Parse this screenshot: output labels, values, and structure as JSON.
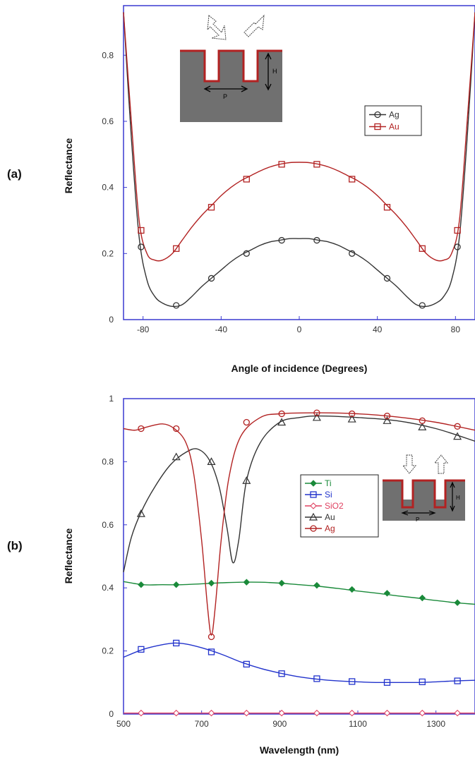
{
  "chart_data": [
    {
      "panel": "(a)",
      "type": "line",
      "xlabel": "Angle of incidence (Degrees)",
      "ylabel": "Reflectance",
      "xlim": [
        -90,
        90
      ],
      "ylim": [
        0,
        0.95
      ],
      "xticks": [
        -80,
        -40,
        0,
        40,
        80
      ],
      "yticks": [
        0,
        0.2,
        0.4,
        0.6,
        0.8
      ],
      "legend_position": "middle-right",
      "grid": false,
      "series": [
        {
          "name": "Ag",
          "color": "#333333",
          "marker": "circle",
          "curve": [
            [
              -90,
              0.93
            ],
            [
              -86,
              0.55
            ],
            [
              -82,
              0.25
            ],
            [
              -78,
              0.12
            ],
            [
              -74,
              0.07
            ],
            [
              -70,
              0.05
            ],
            [
              -65,
              0.04
            ],
            [
              -60,
              0.045
            ],
            [
              -55,
              0.07
            ],
            [
              -50,
              0.1
            ],
            [
              -45,
              0.125
            ],
            [
              -40,
              0.15
            ],
            [
              -35,
              0.175
            ],
            [
              -30,
              0.195
            ],
            [
              -25,
              0.21
            ],
            [
              -20,
              0.225
            ],
            [
              -15,
              0.235
            ],
            [
              -10,
              0.24
            ],
            [
              -5,
              0.245
            ],
            [
              0,
              0.245
            ],
            [
              5,
              0.245
            ],
            [
              10,
              0.24
            ],
            [
              15,
              0.235
            ],
            [
              20,
              0.225
            ],
            [
              25,
              0.21
            ],
            [
              30,
              0.195
            ],
            [
              35,
              0.175
            ],
            [
              40,
              0.15
            ],
            [
              45,
              0.125
            ],
            [
              50,
              0.1
            ],
            [
              55,
              0.07
            ],
            [
              60,
              0.045
            ],
            [
              65,
              0.04
            ],
            [
              70,
              0.05
            ],
            [
              74,
              0.07
            ],
            [
              78,
              0.12
            ],
            [
              82,
              0.25
            ],
            [
              86,
              0.55
            ],
            [
              90,
              0.93
            ]
          ],
          "markers": [
            [
              -81,
              0.22
            ],
            [
              -63,
              0.043
            ],
            [
              -45,
              0.125
            ],
            [
              -27,
              0.2
            ],
            [
              -9,
              0.24
            ],
            [
              9,
              0.24
            ],
            [
              27,
              0.2
            ],
            [
              45,
              0.125
            ],
            [
              63,
              0.043
            ],
            [
              81,
              0.22
            ]
          ]
        },
        {
          "name": "Au",
          "color": "#b22222",
          "marker": "square",
          "curve": [
            [
              -90,
              0.93
            ],
            [
              -86,
              0.6
            ],
            [
              -82,
              0.3
            ],
            [
              -78,
              0.2
            ],
            [
              -74,
              0.18
            ],
            [
              -70,
              0.18
            ],
            [
              -65,
              0.2
            ],
            [
              -60,
              0.24
            ],
            [
              -55,
              0.28
            ],
            [
              -50,
              0.315
            ],
            [
              -45,
              0.345
            ],
            [
              -40,
              0.375
            ],
            [
              -35,
              0.4
            ],
            [
              -30,
              0.42
            ],
            [
              -25,
              0.435
            ],
            [
              -20,
              0.45
            ],
            [
              -15,
              0.462
            ],
            [
              -10,
              0.47
            ],
            [
              -5,
              0.475
            ],
            [
              0,
              0.476
            ],
            [
              5,
              0.475
            ],
            [
              10,
              0.47
            ],
            [
              15,
              0.462
            ],
            [
              20,
              0.45
            ],
            [
              25,
              0.435
            ],
            [
              30,
              0.42
            ],
            [
              35,
              0.4
            ],
            [
              40,
              0.375
            ],
            [
              45,
              0.345
            ],
            [
              50,
              0.315
            ],
            [
              55,
              0.28
            ],
            [
              60,
              0.24
            ],
            [
              65,
              0.2
            ],
            [
              70,
              0.18
            ],
            [
              74,
              0.18
            ],
            [
              78,
              0.2
            ],
            [
              82,
              0.3
            ],
            [
              86,
              0.6
            ],
            [
              90,
              0.93
            ]
          ],
          "markers": [
            [
              -81,
              0.27
            ],
            [
              -63,
              0.215
            ],
            [
              -45,
              0.34
            ],
            [
              -27,
              0.425
            ],
            [
              -9,
              0.47
            ],
            [
              9,
              0.47
            ],
            [
              27,
              0.425
            ],
            [
              45,
              0.34
            ],
            [
              63,
              0.215
            ],
            [
              81,
              0.27
            ]
          ]
        }
      ],
      "inset": {
        "labels": [
          "H",
          "P"
        ],
        "position": "top-left"
      }
    },
    {
      "panel": "(b)",
      "type": "line",
      "xlabel": "Wavelength (nm)",
      "ylabel": "Reflectance",
      "xlim": [
        500,
        1400
      ],
      "ylim": [
        0,
        1
      ],
      "xticks": [
        500,
        700,
        900,
        1100,
        1300
      ],
      "yticks": [
        0,
        0.2,
        0.4,
        0.6,
        0.8,
        1
      ],
      "legend_position": "center-right",
      "grid": false,
      "series": [
        {
          "name": "Ti",
          "color": "#1a8a3a",
          "marker": "diamond-filled",
          "curve": [
            [
              500,
              0.42
            ],
            [
              550,
              0.41
            ],
            [
              600,
              0.41
            ],
            [
              650,
              0.41
            ],
            [
              700,
              0.413
            ],
            [
              750,
              0.416
            ],
            [
              800,
              0.418
            ],
            [
              850,
              0.418
            ],
            [
              900,
              0.415
            ],
            [
              950,
              0.41
            ],
            [
              1000,
              0.405
            ],
            [
              1050,
              0.398
            ],
            [
              1100,
              0.39
            ],
            [
              1150,
              0.383
            ],
            [
              1200,
              0.375
            ],
            [
              1250,
              0.368
            ],
            [
              1300,
              0.36
            ],
            [
              1350,
              0.353
            ],
            [
              1400,
              0.348
            ]
          ],
          "markers": [
            [
              545,
              0.41
            ],
            [
              635,
              0.41
            ],
            [
              725,
              0.415
            ],
            [
              815,
              0.418
            ],
            [
              905,
              0.415
            ],
            [
              995,
              0.408
            ],
            [
              1085,
              0.395
            ],
            [
              1175,
              0.383
            ],
            [
              1265,
              0.368
            ],
            [
              1355,
              0.353
            ]
          ]
        },
        {
          "name": "Si",
          "color": "#2233cc",
          "marker": "square",
          "curve": [
            [
              500,
              0.18
            ],
            [
              550,
              0.205
            ],
            [
              600,
              0.22
            ],
            [
              630,
              0.225
            ],
            [
              660,
              0.222
            ],
            [
              700,
              0.21
            ],
            [
              750,
              0.19
            ],
            [
              800,
              0.165
            ],
            [
              850,
              0.145
            ],
            [
              900,
              0.13
            ],
            [
              950,
              0.118
            ],
            [
              1000,
              0.11
            ],
            [
              1050,
              0.105
            ],
            [
              1100,
              0.102
            ],
            [
              1150,
              0.1
            ],
            [
              1200,
              0.1
            ],
            [
              1250,
              0.1
            ],
            [
              1300,
              0.102
            ],
            [
              1350,
              0.105
            ],
            [
              1400,
              0.107
            ]
          ],
          "markers": [
            [
              545,
              0.205
            ],
            [
              635,
              0.225
            ],
            [
              725,
              0.197
            ],
            [
              815,
              0.158
            ],
            [
              905,
              0.128
            ],
            [
              995,
              0.112
            ],
            [
              1085,
              0.103
            ],
            [
              1175,
              0.1
            ],
            [
              1265,
              0.102
            ],
            [
              1355,
              0.105
            ]
          ]
        },
        {
          "name": "SiO2",
          "color": "#e04060",
          "marker": "diamond",
          "curve": [
            [
              500,
              0.003
            ],
            [
              1400,
              0.003
            ]
          ],
          "markers": [
            [
              545,
              0.003
            ],
            [
              635,
              0.003
            ],
            [
              725,
              0.003
            ],
            [
              815,
              0.003
            ],
            [
              905,
              0.003
            ],
            [
              995,
              0.003
            ],
            [
              1085,
              0.003
            ],
            [
              1175,
              0.003
            ],
            [
              1265,
              0.003
            ],
            [
              1355,
              0.003
            ]
          ]
        },
        {
          "name": "Au",
          "color": "#333333",
          "marker": "triangle",
          "curve": [
            [
              500,
              0.45
            ],
            [
              520,
              0.56
            ],
            [
              545,
              0.64
            ],
            [
              580,
              0.72
            ],
            [
              620,
              0.79
            ],
            [
              660,
              0.83
            ],
            [
              690,
              0.84
            ],
            [
              720,
              0.805
            ],
            [
              745,
              0.72
            ],
            [
              765,
              0.59
            ],
            [
              780,
              0.48
            ],
            [
              795,
              0.55
            ],
            [
              815,
              0.74
            ],
            [
              850,
              0.86
            ],
            [
              900,
              0.925
            ],
            [
              950,
              0.94
            ],
            [
              1000,
              0.945
            ],
            [
              1100,
              0.94
            ],
            [
              1200,
              0.93
            ],
            [
              1300,
              0.905
            ],
            [
              1400,
              0.865
            ]
          ],
          "markers": [
            [
              545,
              0.635
            ],
            [
              635,
              0.815
            ],
            [
              725,
              0.8
            ],
            [
              815,
              0.74
            ],
            [
              905,
              0.925
            ],
            [
              995,
              0.94
            ],
            [
              1085,
              0.935
            ],
            [
              1175,
              0.93
            ],
            [
              1265,
              0.91
            ],
            [
              1355,
              0.88
            ]
          ]
        },
        {
          "name": "Ag",
          "color": "#b22222",
          "marker": "circle",
          "curve": [
            [
              500,
              0.905
            ],
            [
              530,
              0.9
            ],
            [
              560,
              0.91
            ],
            [
              600,
              0.92
            ],
            [
              630,
              0.905
            ],
            [
              660,
              0.86
            ],
            [
              680,
              0.76
            ],
            [
              700,
              0.55
            ],
            [
              715,
              0.34
            ],
            [
              725,
              0.25
            ],
            [
              735,
              0.34
            ],
            [
              750,
              0.55
            ],
            [
              770,
              0.75
            ],
            [
              800,
              0.88
            ],
            [
              850,
              0.94
            ],
            [
              900,
              0.952
            ],
            [
              1000,
              0.955
            ],
            [
              1100,
              0.952
            ],
            [
              1200,
              0.942
            ],
            [
              1300,
              0.925
            ],
            [
              1400,
              0.9
            ]
          ],
          "markers": [
            [
              545,
              0.905
            ],
            [
              635,
              0.905
            ],
            [
              725,
              0.245
            ],
            [
              815,
              0.925
            ],
            [
              905,
              0.952
            ],
            [
              995,
              0.955
            ],
            [
              1085,
              0.952
            ],
            [
              1175,
              0.945
            ],
            [
              1265,
              0.93
            ],
            [
              1355,
              0.912
            ]
          ]
        }
      ],
      "inset": {
        "labels": [
          "H",
          "P"
        ],
        "position": "right"
      }
    }
  ]
}
